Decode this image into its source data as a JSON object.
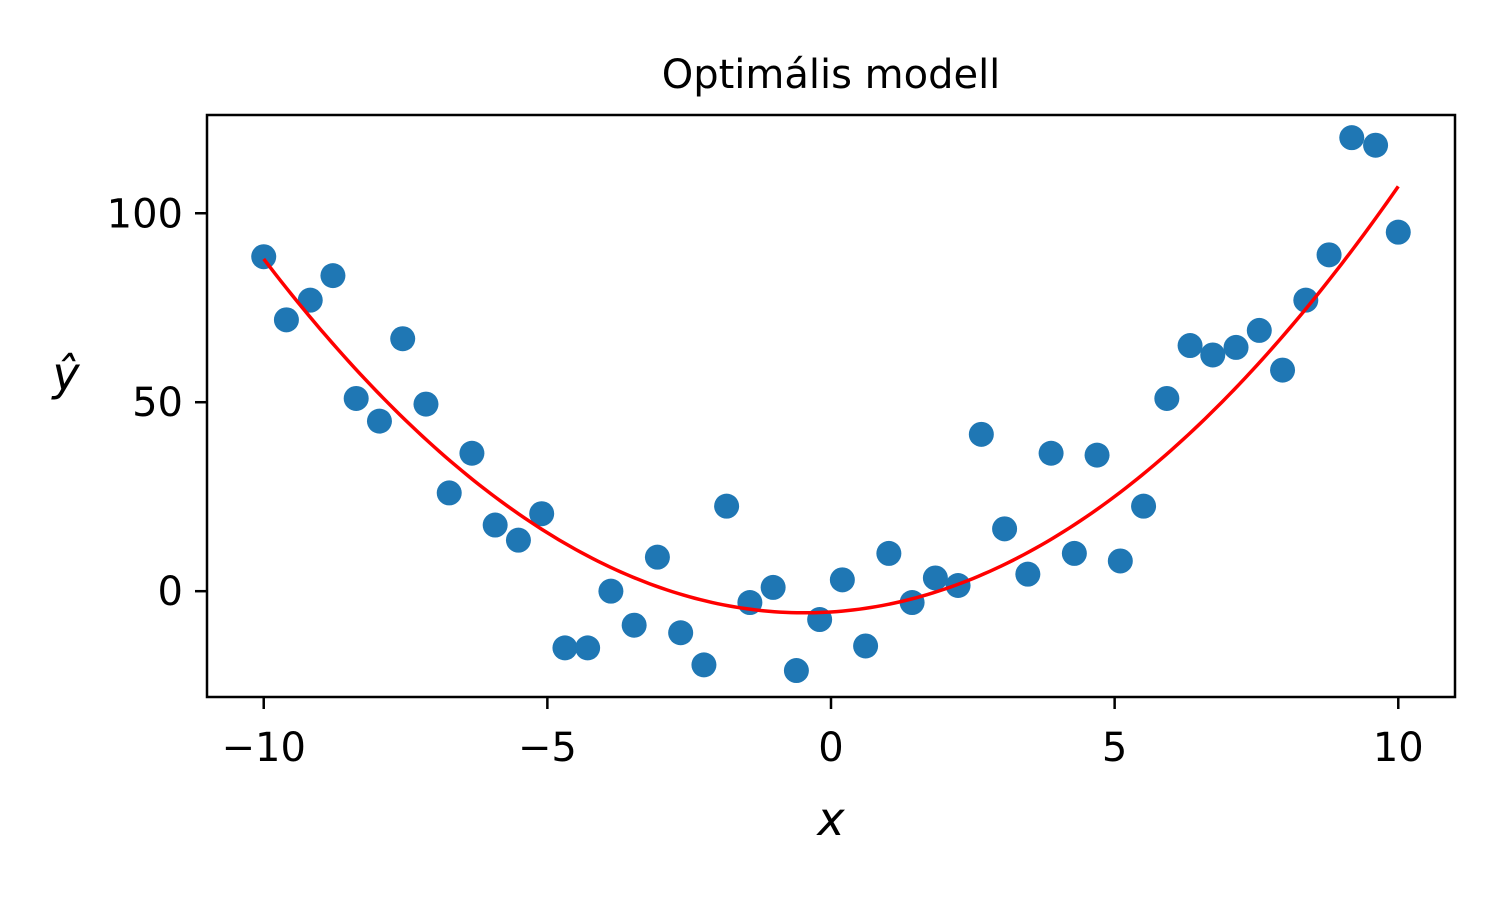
{
  "chart_data": {
    "type": "scatter",
    "title": "Optimális modell",
    "xlabel": "x",
    "ylabel": "ŷ",
    "xlim": [
      -11,
      11
    ],
    "ylim": [
      -28,
      126
    ],
    "xticks": [
      -10,
      -5,
      0,
      5,
      10
    ],
    "xtick_labels": [
      "−10",
      "−5",
      "0",
      "5",
      "10"
    ],
    "yticks": [
      0,
      50,
      100
    ],
    "ytick_labels": [
      "0",
      "50",
      "100"
    ],
    "grid": false,
    "series": [
      {
        "kind": "scatter",
        "color": "#1f77b4",
        "points": [
          [
            -10.0,
            88.5
          ],
          [
            -9.6,
            71.8
          ],
          [
            -9.18,
            77.0
          ],
          [
            -8.78,
            83.5
          ],
          [
            -8.37,
            51.0
          ],
          [
            -7.96,
            45.0
          ],
          [
            -7.55,
            66.8
          ],
          [
            -7.14,
            49.5
          ],
          [
            -6.73,
            26.0
          ],
          [
            -6.33,
            36.5
          ],
          [
            -5.92,
            17.5
          ],
          [
            -5.51,
            13.5
          ],
          [
            -5.1,
            20.5
          ],
          [
            -4.69,
            -15.0
          ],
          [
            -4.29,
            -15.0
          ],
          [
            -3.88,
            0.0
          ],
          [
            -3.47,
            -9.0
          ],
          [
            -3.06,
            9.0
          ],
          [
            -2.65,
            -11.0
          ],
          [
            -2.24,
            -19.5
          ],
          [
            -1.84,
            22.5
          ],
          [
            -1.43,
            -3.0
          ],
          [
            -1.02,
            1.0
          ],
          [
            -0.61,
            -21.0
          ],
          [
            -0.2,
            -7.5
          ],
          [
            0.2,
            3.0
          ],
          [
            0.61,
            -14.5
          ],
          [
            1.02,
            10.0
          ],
          [
            1.43,
            -3.0
          ],
          [
            1.84,
            3.5
          ],
          [
            2.24,
            1.5
          ],
          [
            2.65,
            41.5
          ],
          [
            3.06,
            16.5
          ],
          [
            3.47,
            4.5
          ],
          [
            3.88,
            36.5
          ],
          [
            4.29,
            10.0
          ],
          [
            4.69,
            36.0
          ],
          [
            5.1,
            8.0
          ],
          [
            5.51,
            22.5
          ],
          [
            5.92,
            51.0
          ],
          [
            6.33,
            65.0
          ],
          [
            6.73,
            62.5
          ],
          [
            7.14,
            64.5
          ],
          [
            7.55,
            69.0
          ],
          [
            7.96,
            58.5
          ],
          [
            8.37,
            77.0
          ],
          [
            8.78,
            89.0
          ],
          [
            9.18,
            120.0
          ],
          [
            9.6,
            118.0
          ],
          [
            10.0,
            95.0
          ]
        ]
      },
      {
        "kind": "line",
        "color": "#ff0000",
        "model": {
          "a": 1.03,
          "b": 0.96,
          "c": -5.5
        },
        "x_range": [
          -10,
          10
        ]
      }
    ]
  }
}
